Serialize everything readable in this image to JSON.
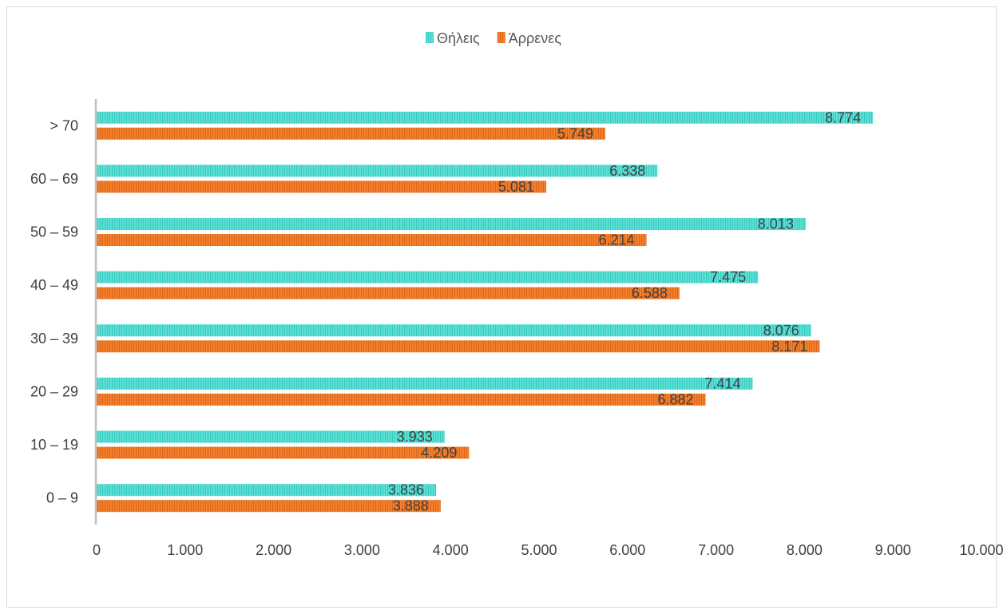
{
  "chart_data": {
    "type": "bar",
    "orientation": "horizontal",
    "categories": [
      "0 – 9",
      "10 – 19",
      "20 – 29",
      "30 – 39",
      "40 – 49",
      "50 – 59",
      "60 – 69",
      "> 70"
    ],
    "series": [
      {
        "name": "Θήλεις",
        "color": "#5ce0d6",
        "values": [
          3836,
          3933,
          7414,
          8076,
          7475,
          8013,
          6338,
          8774
        ],
        "labels": [
          "3.836",
          "3.933",
          "7.414",
          "8.076",
          "7.475",
          "8.013",
          "6.338",
          "8.774"
        ]
      },
      {
        "name": "Άρρενες",
        "color": "#f5802b",
        "values": [
          3888,
          4209,
          6882,
          8171,
          6588,
          6214,
          5081,
          5749
        ],
        "labels": [
          "3.888",
          "4.209",
          "6.882",
          "8.171",
          "6.588",
          "6.214",
          "5.081",
          "5.749"
        ]
      }
    ],
    "xlim": [
      0,
      10000
    ],
    "xticks": [
      0,
      1000,
      2000,
      3000,
      4000,
      5000,
      6000,
      7000,
      8000,
      9000,
      10000
    ],
    "xtick_labels": [
      "0",
      "1.000",
      "2.000",
      "3.000",
      "4.000",
      "5.000",
      "6.000",
      "7.000",
      "8.000",
      "9.000",
      "10.000"
    ],
    "title": "",
    "xlabel": "",
    "ylabel": "",
    "grid": false,
    "legend_position": "top"
  }
}
